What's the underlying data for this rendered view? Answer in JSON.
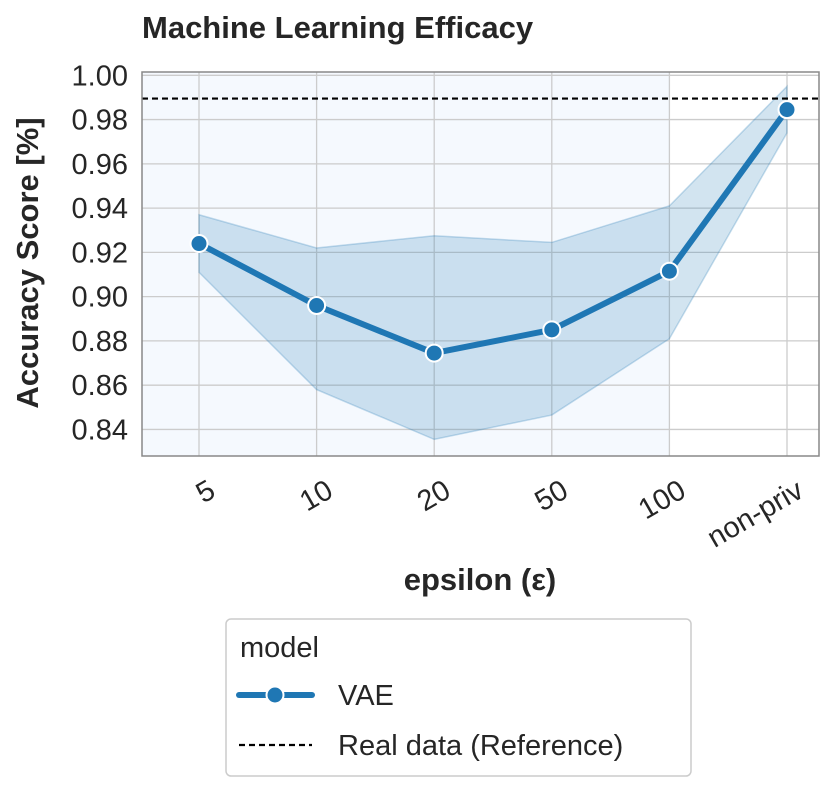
{
  "chart_data": {
    "type": "line",
    "title": "Machine Learning Efficacy",
    "xlabel": "epsilon (ε)",
    "ylabel": "Accuracy Score [%]",
    "categories": [
      "5",
      "10",
      "20",
      "50",
      "100",
      "non-priv"
    ],
    "y_ticks": [
      "0.84",
      "0.86",
      "0.88",
      "0.90",
      "0.92",
      "0.94",
      "0.96",
      "0.98",
      "1.00"
    ],
    "ylim": [
      0.828,
      1.0015
    ],
    "grid": true,
    "series": [
      {
        "name": "VAE",
        "values": [
          0.924,
          0.896,
          0.8745,
          0.885,
          0.9115,
          0.9845
        ],
        "ci_upper": [
          0.937,
          0.922,
          0.9275,
          0.9245,
          0.941,
          0.995
        ],
        "ci_lower": [
          0.911,
          0.858,
          0.8355,
          0.8465,
          0.881,
          0.974
        ],
        "color": "#1f77b4"
      }
    ],
    "reference_line": {
      "name": "Real data (Reference)",
      "value": 0.9895,
      "color": "#000000",
      "style": "dashed"
    },
    "legend": {
      "title": "model",
      "placement": "bottom-center",
      "entries": [
        "VAE",
        "Real data (Reference)"
      ]
    },
    "colors": {
      "plot_background": "#f5f9fe",
      "grid": "#cccccc",
      "band": "#1f77b4"
    }
  }
}
